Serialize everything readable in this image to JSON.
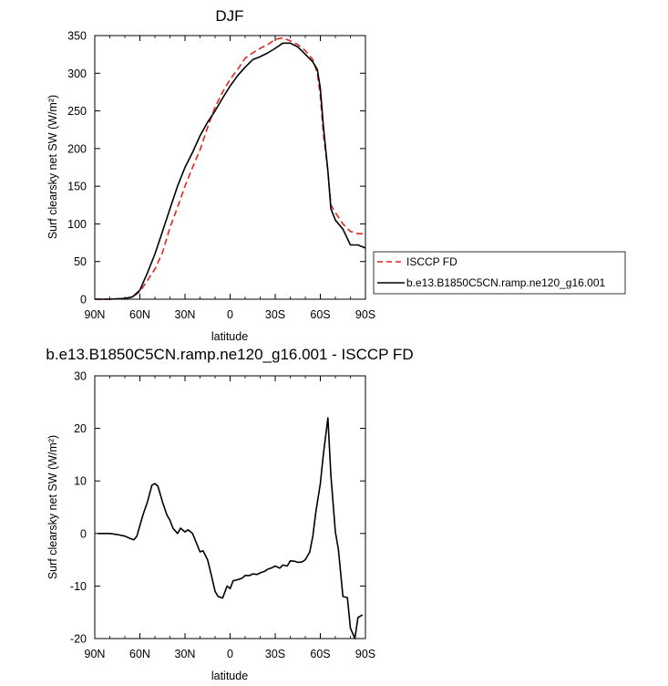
{
  "chart_data": [
    {
      "type": "line",
      "title": "DJF",
      "xlabel": "latitude",
      "ylabel": "Surf clearsky net SW (W/m²)",
      "xlim": [
        90,
        -90
      ],
      "ylim": [
        0,
        350
      ],
      "xticks": [
        90,
        60,
        30,
        0,
        -30,
        -60,
        -90
      ],
      "xtick_labels": [
        "90N",
        "60N",
        "30N",
        "0",
        "30S",
        "60S",
        "90S"
      ],
      "yticks": [
        0,
        50,
        100,
        150,
        200,
        250,
        300,
        350
      ],
      "ytick_labels": [
        "0",
        "50",
        "100",
        "150",
        "200",
        "250",
        "300",
        "350"
      ],
      "legend_position": "right, outside plot",
      "series": [
        {
          "name": "ISCCP FD",
          "color": "#e0261f",
          "style": "dashed",
          "x": [
            90,
            80,
            70,
            65,
            60,
            55,
            50,
            45,
            40,
            35,
            30,
            25,
            20,
            15,
            10,
            5,
            0,
            -5,
            -10,
            -15,
            -20,
            -25,
            -30,
            -35,
            -40,
            -45,
            -50,
            -55,
            -58,
            -60,
            -62,
            -65,
            -67,
            -70,
            -75,
            -80,
            -85,
            -90
          ],
          "y": [
            0,
            0,
            1,
            3,
            10,
            25,
            40,
            62,
            95,
            122,
            150,
            175,
            198,
            228,
            255,
            275,
            292,
            305,
            320,
            327,
            333,
            338,
            345,
            347,
            343,
            338,
            330,
            318,
            300,
            270,
            220,
            170,
            125,
            115,
            100,
            90,
            87,
            87
          ]
        },
        {
          "name": "b.e13.B1850C5CN.ramp.ne120_g16.001",
          "color": "#000000",
          "style": "solid",
          "x": [
            90,
            80,
            70,
            65,
            60,
            55,
            50,
            45,
            40,
            35,
            30,
            25,
            20,
            15,
            10,
            5,
            0,
            -5,
            -10,
            -15,
            -20,
            -25,
            -30,
            -35,
            -40,
            -45,
            -50,
            -55,
            -58,
            -60,
            -62,
            -65,
            -67,
            -70,
            -75,
            -80,
            -85,
            -90
          ],
          "y": [
            0,
            0,
            1,
            3,
            12,
            35,
            60,
            90,
            120,
            150,
            175,
            195,
            217,
            235,
            250,
            267,
            283,
            297,
            308,
            318,
            322,
            327,
            333,
            340,
            340,
            335,
            325,
            315,
            305,
            280,
            230,
            170,
            120,
            105,
            93,
            72,
            72,
            68
          ]
        }
      ]
    },
    {
      "type": "line",
      "title": "b.e13.B1850C5CN.ramp.ne120_g16.001 - ISCCP FD",
      "xlabel": "latitude",
      "ylabel": "Surf clearsky net SW (W/m²)",
      "xlim": [
        90,
        -90
      ],
      "ylim": [
        -20,
        30
      ],
      "xticks": [
        90,
        60,
        30,
        0,
        -30,
        -60,
        -90
      ],
      "xtick_labels": [
        "90N",
        "60N",
        "30N",
        "0",
        "30S",
        "60S",
        "90S"
      ],
      "yticks": [
        -20,
        -10,
        0,
        10,
        20,
        30
      ],
      "ytick_labels": [
        "-20",
        "-10",
        "0",
        "10",
        "20",
        "30"
      ],
      "series": [
        {
          "color": "#000000",
          "style": "solid",
          "x": [
            88,
            80,
            75,
            70,
            66,
            64,
            62,
            58,
            55,
            52,
            50,
            48,
            45,
            42,
            40,
            38,
            35,
            33,
            30,
            28,
            25,
            20,
            18,
            15,
            12,
            10,
            8,
            5,
            2,
            0,
            -2,
            -5,
            -8,
            -10,
            -13,
            -15,
            -18,
            -20,
            -23,
            -25,
            -28,
            -30,
            -33,
            -35,
            -38,
            -40,
            -43,
            -45,
            -48,
            -50,
            -53,
            -55,
            -57,
            -60,
            -62,
            -65,
            -67,
            -70,
            -72,
            -75,
            -78,
            -80,
            -83,
            -85,
            -88
          ],
          "y": [
            0,
            0,
            -0.2,
            -0.5,
            -1.0,
            -1.2,
            -0.5,
            3.5,
            6.0,
            9.2,
            9.5,
            9.0,
            6.0,
            3.5,
            2.5,
            1.0,
            0.0,
            1.0,
            0.3,
            0.7,
            0.0,
            -3.5,
            -3.3,
            -5.0,
            -8.5,
            -11.0,
            -12.0,
            -12.3,
            -10.0,
            -10.5,
            -9.0,
            -8.8,
            -8.5,
            -8.0,
            -8.0,
            -7.7,
            -7.8,
            -7.5,
            -7.2,
            -6.8,
            -6.5,
            -6.2,
            -6.6,
            -6.0,
            -6.2,
            -5.2,
            -5.3,
            -5.5,
            -5.4,
            -5.0,
            -3.5,
            -0.5,
            4.0,
            9.5,
            15.0,
            22.0,
            11.0,
            0.3,
            -3.0,
            -12.0,
            -12.2,
            -18.0,
            -20.0,
            -16.0,
            -15.5
          ]
        }
      ]
    }
  ]
}
